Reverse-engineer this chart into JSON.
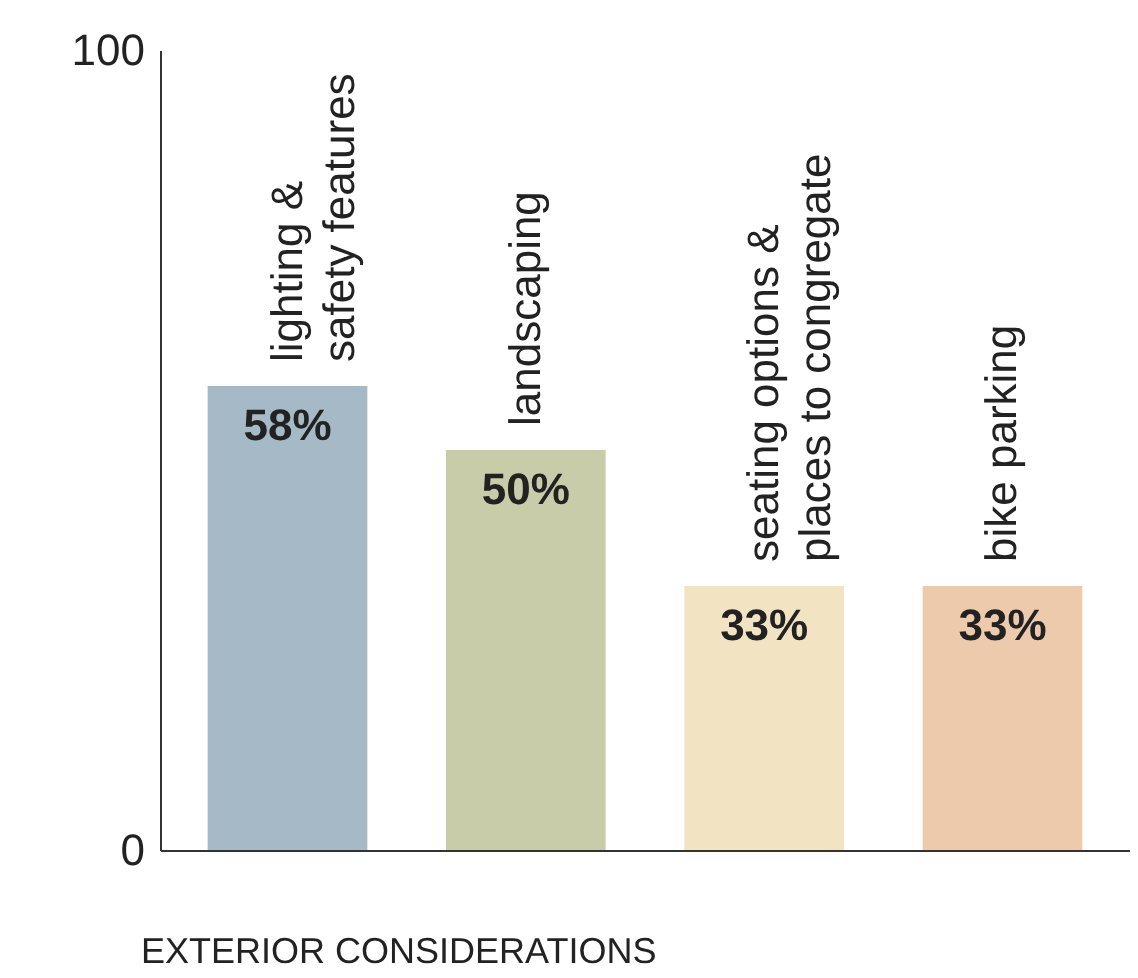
{
  "chart_data": {
    "type": "bar",
    "xlabel": "EXTERIOR CONSIDERATIONS",
    "categories": [
      "lighting &\nsafety features",
      "landscaping",
      "seating options &\nplaces to congregate",
      "bike parking"
    ],
    "values": [
      58,
      50,
      33,
      33
    ],
    "colors": [
      "#a5bac6",
      "#c9cca9",
      "#f2e3c2",
      "#eecaac"
    ],
    "value_labels": [
      "58%",
      "50%",
      "33%",
      "33%"
    ],
    "ylim": [
      0,
      100
    ],
    "yticks": [
      0,
      100
    ],
    "grid": false
  }
}
